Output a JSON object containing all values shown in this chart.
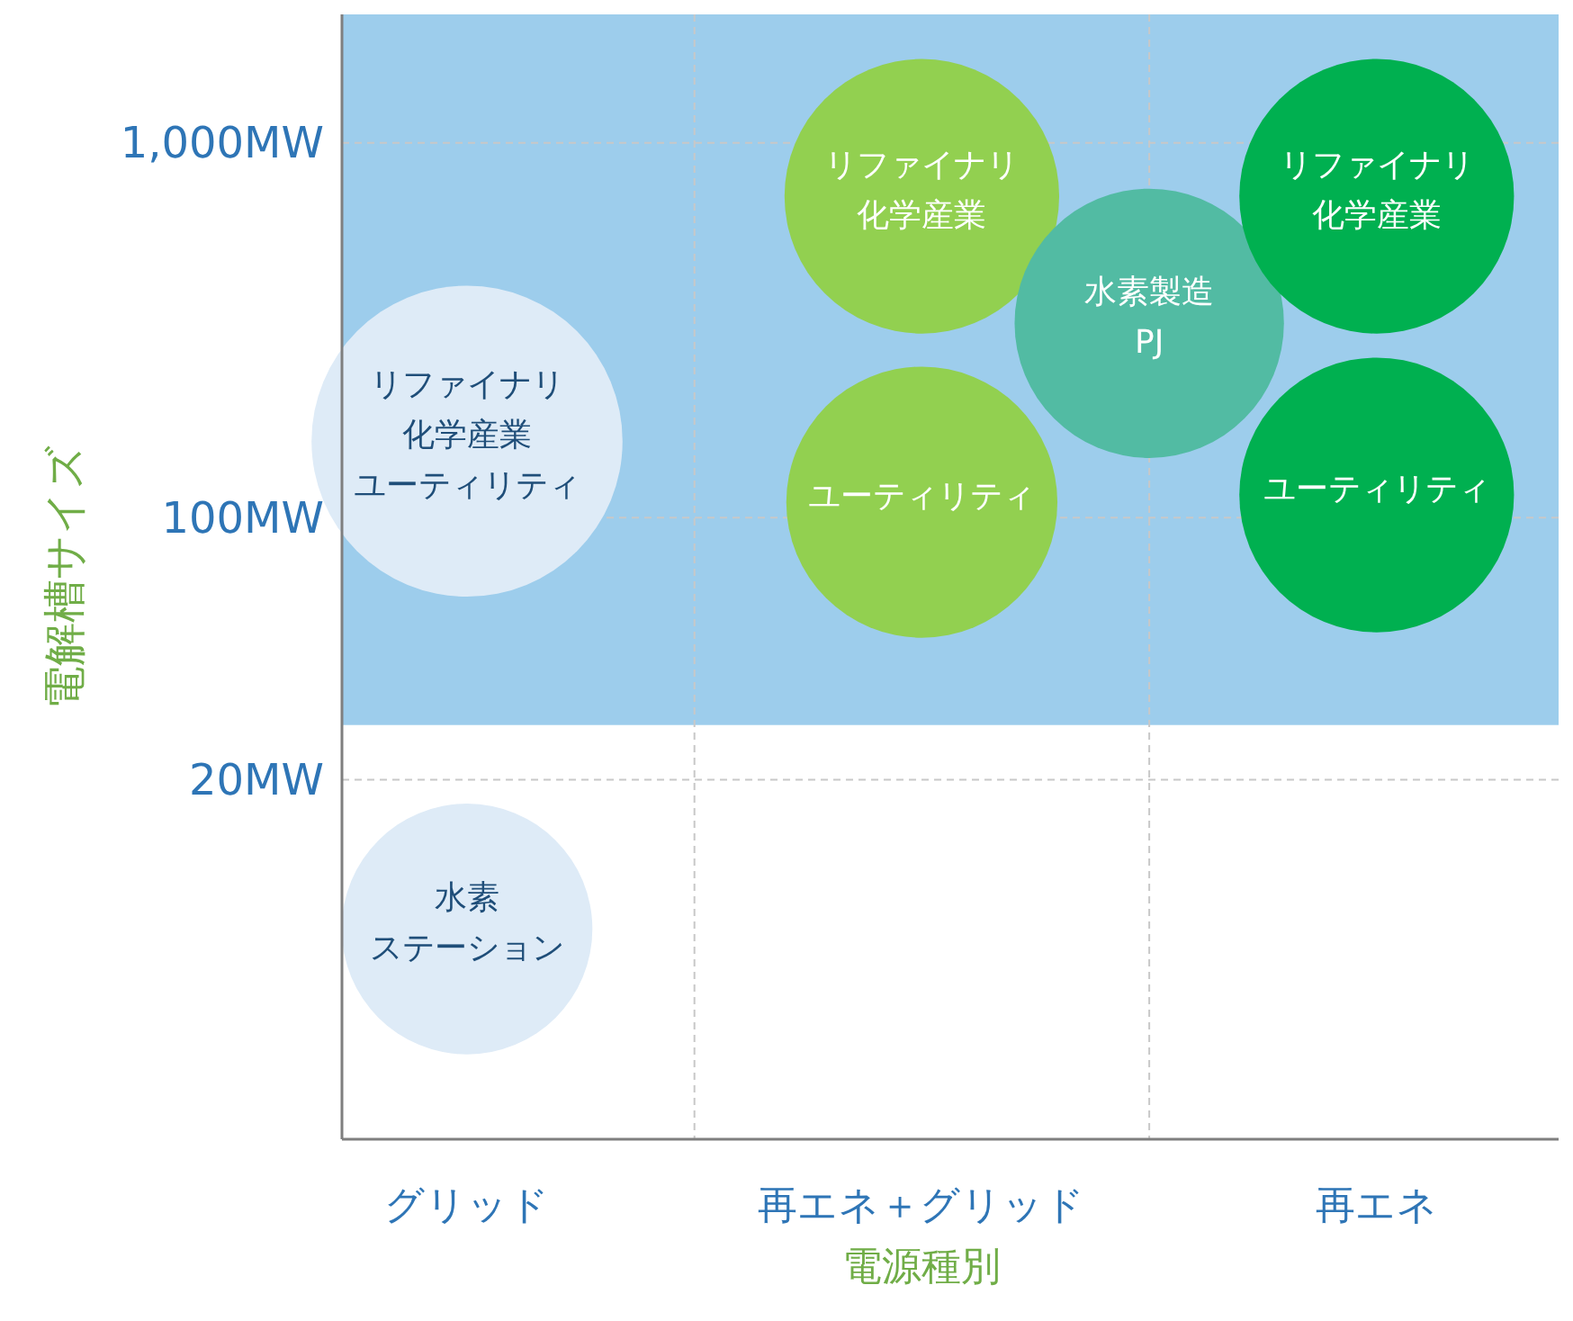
{
  "chart_data": {
    "type": "bubble",
    "xlabel": "電源種別",
    "ylabel": "電解槽サイズ",
    "log": "y",
    "grid": true,
    "categories": [
      "グリッド",
      null,
      "再エネ＋グリッド",
      null,
      "再エネ"
    ],
    "ylim": [
      2.2,
      2200
    ],
    "yticks": [
      {
        "value": 20,
        "label": "20MW"
      },
      {
        "value": 100,
        "label": "100MW"
      },
      {
        "value": 1000,
        "label": "1,000MW"
      }
    ],
    "bands": [
      {
        "axis": "y",
        "from": 28,
        "to": 2200,
        "color": "#9dcdec"
      }
    ],
    "series": [
      {
        "name": "リファイナリ化学産業ユーティリティ",
        "color": "#deebf7",
        "values": [
          160,
          null,
          null,
          null,
          null
        ],
        "sizes": [
          1,
          null,
          null,
          null,
          null
        ]
      },
      {
        "name": "水素ステーション",
        "color": "#deebf7",
        "values": [
          8,
          null,
          null,
          null,
          null
        ],
        "sizes": [
          0.65,
          null,
          null,
          null,
          null
        ]
      },
      {
        "name": "リファイナリ化学産業",
        "color": "#92d050",
        "values": [
          null,
          null,
          720,
          null,
          null
        ],
        "sizes": [
          null,
          null,
          0.78,
          null,
          null
        ]
      },
      {
        "name": "ユーティリティ",
        "color": "#92d050",
        "values": [
          null,
          null,
          110,
          null,
          null
        ],
        "sizes": [
          null,
          null,
          0.76,
          null,
          null
        ]
      },
      {
        "name": "水素製造PJ",
        "color": "#52bba3",
        "values": [
          null,
          null,
          null,
          330,
          null
        ],
        "sizes": [
          null,
          null,
          null,
          0.75,
          null
        ]
      },
      {
        "name": "リファイナリ化学産業",
        "color": "#00b050",
        "values": [
          null,
          null,
          null,
          null,
          720
        ],
        "sizes": [
          null,
          null,
          null,
          null,
          0.78
        ]
      },
      {
        "name": "ユーティリティ",
        "color": "#00b050",
        "values": [
          null,
          null,
          null,
          null,
          115
        ],
        "sizes": [
          null,
          null,
          null,
          null,
          0.78
        ]
      }
    ]
  }
}
